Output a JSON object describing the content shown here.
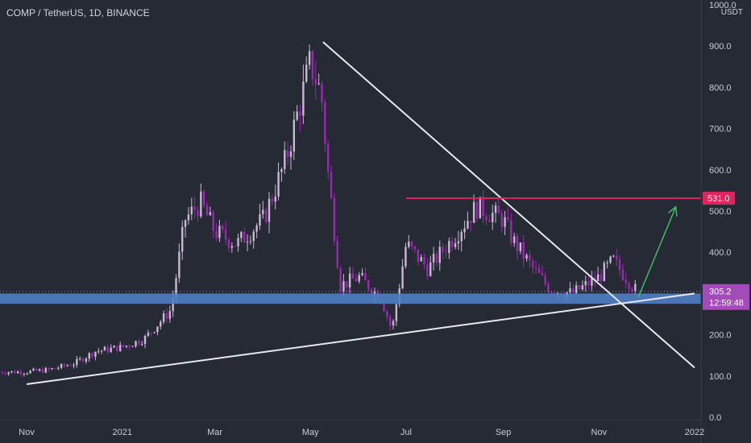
{
  "header": {
    "title": "COMP / TetherUS, 1D, BINANCE",
    "unit": "USDT"
  },
  "price_axis": {
    "ticks": [
      "1000.0",
      "900.0",
      "800.0",
      "700.0",
      "600.0",
      "500.0",
      "400.0",
      "300.0",
      "200.0",
      "100.0",
      "0.0"
    ],
    "resistance_label": "531.0",
    "last_price_label": "305.2",
    "countdown_label": "12:59:48"
  },
  "time_axis": {
    "ticks": [
      "Nov",
      "2021",
      "Mar",
      "May",
      "Jul",
      "Sep",
      "Nov",
      "2022"
    ]
  },
  "colors": {
    "background": "#262a35",
    "candle": "#c9b8d2",
    "candle_accent": "#9c27b0",
    "trendline": "#e8e8ee",
    "resistance": "#e0245e",
    "support_zone": "#4f7ec4",
    "arrow": "#3fbf5f"
  },
  "chart_data": {
    "type": "candlestick",
    "title": "COMP / TetherUS, 1D, BINANCE",
    "ylabel": "USDT",
    "ylim": [
      0,
      1000
    ],
    "x": [
      "2020-11-01",
      "2020-11-15",
      "2020-12-01",
      "2020-12-15",
      "2021-01-01",
      "2021-01-15",
      "2021-02-01",
      "2021-02-10",
      "2021-02-20",
      "2021-03-01",
      "2021-03-15",
      "2021-04-01",
      "2021-04-15",
      "2021-05-01",
      "2021-05-08",
      "2021-05-12",
      "2021-05-20",
      "2021-06-01",
      "2021-06-15",
      "2021-06-22",
      "2021-07-01",
      "2021-07-15",
      "2021-08-01",
      "2021-08-15",
      "2021-09-01",
      "2021-09-07",
      "2021-09-20",
      "2021-10-01",
      "2021-10-15",
      "2021-11-01",
      "2021-11-10",
      "2021-11-20",
      "2021-11-25"
    ],
    "close": [
      110,
      115,
      130,
      160,
      170,
      190,
      260,
      480,
      520,
      450,
      420,
      480,
      620,
      860,
      780,
      600,
      320,
      340,
      290,
      210,
      420,
      360,
      440,
      510,
      480,
      430,
      360,
      310,
      300,
      340,
      380,
      330,
      305
    ],
    "annotations": {
      "resistance": 531.0,
      "support_zone": [
        275,
        300
      ],
      "descending_trendline": [
        [
          "2021-05-09",
          910
        ],
        [
          "2022-01-01",
          120
        ]
      ],
      "ascending_trendline": [
        [
          "2020-11-01",
          80
        ],
        [
          "2022-01-01",
          300
        ]
      ],
      "projection_arrow": [
        [
          "2021-11-26",
          290
        ],
        [
          "2021-12-20",
          510
        ]
      ],
      "last_price": 305.2
    },
    "grid": false,
    "legend": "none"
  }
}
